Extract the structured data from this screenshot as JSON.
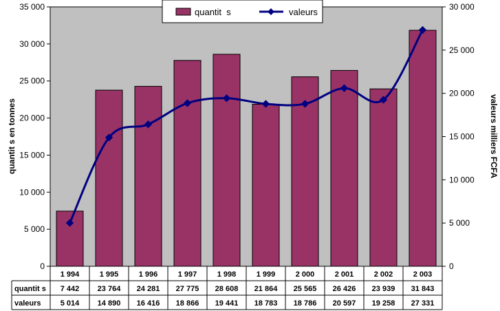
{
  "chart_data": {
    "type": "bar",
    "title": "",
    "categories": [
      "1 994",
      "1 995",
      "1 996",
      "1 997",
      "1 998",
      "1 999",
      "2 000",
      "2 001",
      "2 002",
      "2 003"
    ],
    "series": [
      {
        "name": "quantit  s",
        "type": "bar",
        "axis": "left",
        "color": "#993366",
        "values": [
          7442,
          23764,
          24281,
          27775,
          28608,
          21864,
          25565,
          26426,
          23939,
          31843
        ],
        "labels": [
          "7 442",
          "23 764",
          "24 281",
          "27 775",
          "28 608",
          "21 864",
          "25 565",
          "26 426",
          "23 939",
          "31 843"
        ]
      },
      {
        "name": "valeurs",
        "type": "line",
        "axis": "right",
        "color": "#000080",
        "values": [
          5014,
          14890,
          16416,
          18866,
          19441,
          18783,
          18786,
          20597,
          19258,
          27331
        ],
        "labels": [
          "5 014",
          "14 890",
          "16 416",
          "18 866",
          "19 441",
          "18 783",
          "18 786",
          "20 597",
          "19 258",
          "27 331"
        ]
      }
    ],
    "ylabel": "quantit  s en tonnes",
    "y2label": "valeurs milliers FCFA",
    "ylim": [
      0,
      35000
    ],
    "y2lim": [
      0,
      30000
    ],
    "yticks": [
      "0",
      "5 000",
      "10 000",
      "15 000",
      "20 000",
      "25 000",
      "30 000",
      "35 000"
    ],
    "y2ticks": [
      "0",
      "5 000",
      "10 000",
      "15 000",
      "20 000",
      "25 000",
      "30 000"
    ],
    "legend_position": "top-center",
    "plot_background": "#c0c0c0",
    "data_table": true
  }
}
